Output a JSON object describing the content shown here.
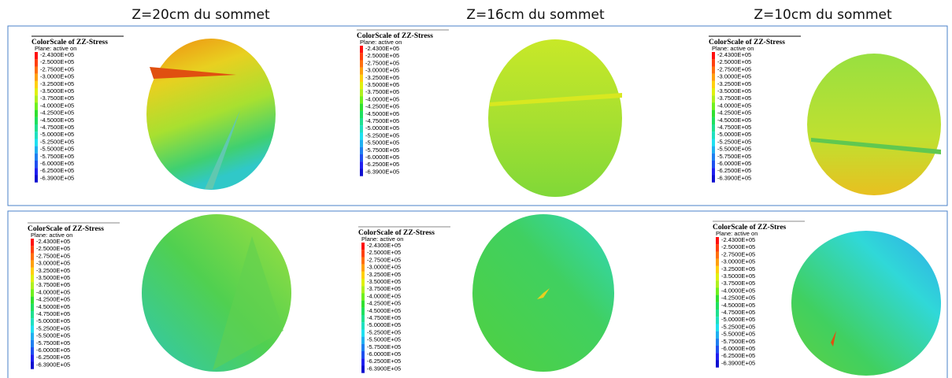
{
  "headers": [
    "Z=20cm du sommet",
    "Z=16cm du sommet",
    "Z=10cm du sommet"
  ],
  "panels": [
    {
      "title": "ColorScale of ZZ-Stress",
      "plane": "Plane: active on",
      "labels": [
        "-2.4300E+05",
        "-2.5000E+05",
        "-2.7500E+05",
        "-3.0000E+05",
        "-3.2500E+05",
        "-3.5000E+05",
        "-3.7500E+05",
        "-4.0000E+05",
        "-4.2500E+05",
        "-4.5000E+05",
        "-4.7500E+05",
        "-5.0000E+05",
        "-5.2500E+05",
        "-5.5000E+05",
        "-5.7500E+05",
        "-6.0000E+05",
        "-6.2500E+05",
        "-6.3900E+05"
      ]
    },
    {
      "title": "ColorScale of ZZ-Stress",
      "plane": "Plane: active on",
      "labels": [
        "-2.4300E+05",
        "-2.5000E+05",
        "-2.7500E+05",
        "-3.0000E+05",
        "-3.2500E+05",
        "-3.5000E+05",
        "-3.7500E+05",
        "-4.0000E+05",
        "-4.2500E+05",
        "-4.5000E+05",
        "-4.7500E+05",
        "-5.0000E+05",
        "-5.2500E+05",
        "-5.5000E+05",
        "-5.7500E+05",
        "-6.0000E+05",
        "-6.2500E+05",
        "-6.3900E+05"
      ]
    },
    {
      "title": "ColorScale of ZZ-Stress",
      "plane": "Plane: active on",
      "labels": [
        "-2.4300E+05",
        "-2.5000E+05",
        "-2.7500E+05",
        "-3.0000E+05",
        "-3.2500E+05",
        "-3.5000E+05",
        "-3.7500E+05",
        "-4.0000E+05",
        "-4.2500E+05",
        "-4.5000E+05",
        "-4.7500E+05",
        "-5.0000E+05",
        "-5.2500E+05",
        "-5.5000E+05",
        "-5.7500E+05",
        "-6.0000E+05",
        "-6.2500E+05",
        "-6.3900E+05"
      ]
    },
    {
      "title": "ColorScale of ZZ-Stress",
      "plane": "Plane: active on",
      "labels": [
        "-2.4300E+05",
        "-2.5000E+05",
        "-2.7500E+05",
        "-3.0000E+05",
        "-3.2500E+05",
        "-3.5000E+05",
        "-3.7500E+05",
        "-4.0000E+05",
        "-4.2500E+05",
        "-4.5000E+05",
        "-4.7500E+05",
        "-5.0000E+05",
        "-5.2500E+05",
        "-5.5000E+05",
        "-5.7500E+05",
        "-6.0000E+05",
        "-6.2500E+05",
        "-6.3900E+05"
      ]
    },
    {
      "title": "ColorScale of ZZ-Stress",
      "plane": "Plane: active on",
      "labels": [
        "-2.4300E+05",
        "-2.5000E+05",
        "-2.7500E+05",
        "-3.0000E+05",
        "-3.2500E+05",
        "-3.5000E+05",
        "-3.7500E+05",
        "-4.0000E+05",
        "-4.2500E+05",
        "-4.5000E+05",
        "-4.7500E+05",
        "-5.0000E+05",
        "-5.2500E+05",
        "-5.5000E+05",
        "-5.7500E+05",
        "-6.0000E+05",
        "-6.2500E+05",
        "-6.3900E+05"
      ]
    },
    {
      "title": "ColorScale of ZZ-Stres",
      "plane": "Plane: active on",
      "labels": [
        "-2.4300E+05",
        "-2.5000E+05",
        "-2.7500E+05",
        "-3.0000E+05",
        "-3.2500E+05",
        "-3.5000E+05",
        "-3.7500E+05",
        "-4.0000E+05",
        "-4.2500E+05",
        "-4.5000E+05",
        "-4.7500E+05",
        "-5.0000E+05",
        "-5.2500E+05",
        "-5.5000E+05",
        "-5.7500E+05",
        "-6.0000E+05",
        "-6.2500E+05",
        "-6.3900E+05"
      ]
    }
  ]
}
